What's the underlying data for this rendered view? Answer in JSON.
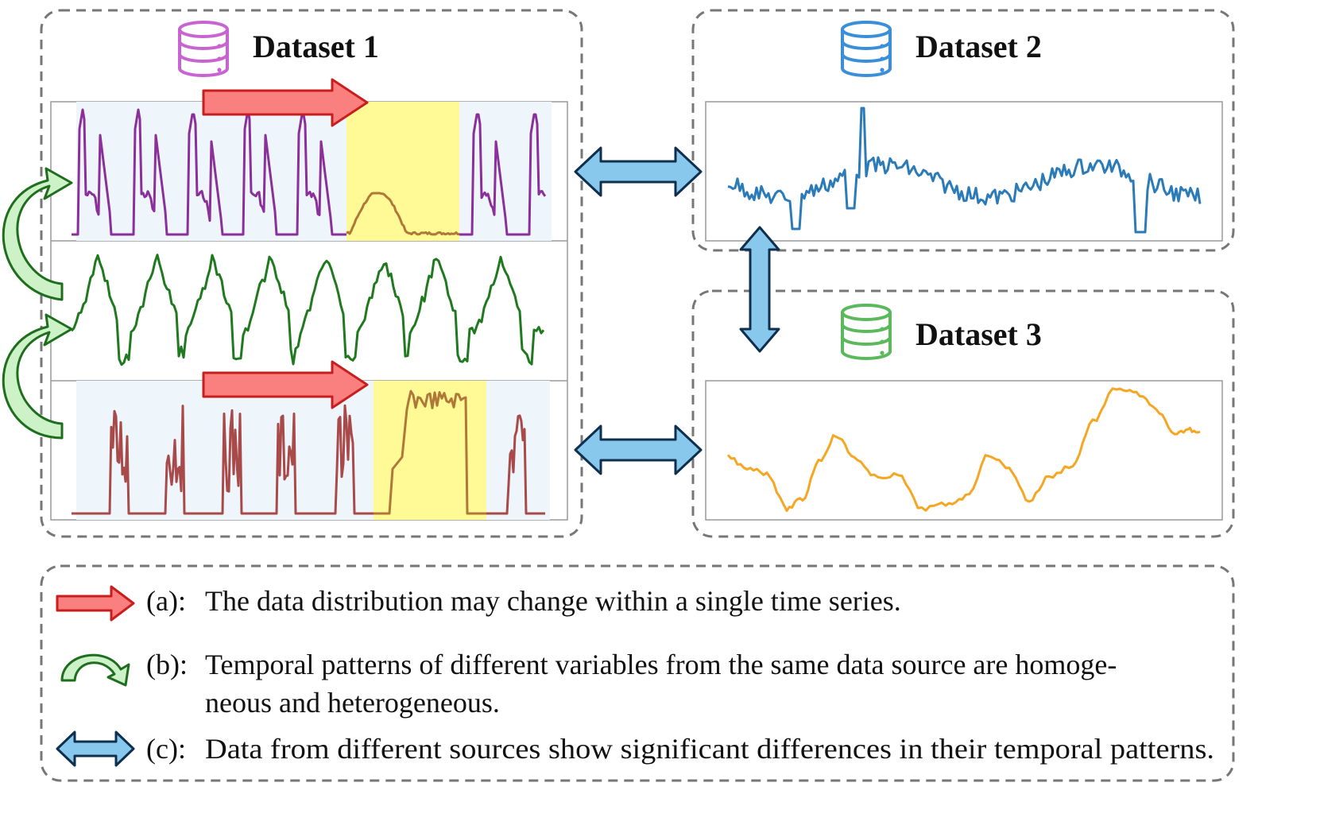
{
  "colors": {
    "dataset1_icon": "#c864d2",
    "dataset2_icon": "#3a8fd8",
    "dataset3_icon": "#5cb85c",
    "series_purple": "#8b2f9b",
    "series_green": "#1f7a1f",
    "series_red": "#a84a4a",
    "series_blue": "#2b7bb9",
    "series_orange": "#f5a623",
    "segment_brown": "#b07838",
    "highlight_yellow": "#fffa96",
    "shade_blue": "#eef6fc",
    "red_arrow_fill": "#fa7f7f",
    "red_arrow_stroke": "#c81e1e",
    "green_arrow_fill": "#cdf2c8",
    "green_arrow_stroke": "#1e6e1e",
    "blue_arrow_fill": "#87c8ec",
    "blue_arrow_stroke": "#0f2f4f",
    "dashed_border": "#777777"
  },
  "datasets": [
    {
      "title": "Dataset 1",
      "icon": "database-icon"
    },
    {
      "title": "Dataset 2",
      "icon": "database-icon"
    },
    {
      "title": "Dataset 3",
      "icon": "database-icon"
    }
  ],
  "legend": {
    "a": {
      "label": "(a):",
      "text": "The data distribution may change within a single time series.",
      "icon": "red-right-arrow-icon"
    },
    "b": {
      "label": "(b):",
      "line1": "Temporal patterns of different variables from the same data source are homoge-",
      "line2": "neous and heterogeneous.",
      "icon": "green-curved-arrow-icon"
    },
    "c": {
      "label": "(c):",
      "text": "Data from different sources show significant differences in their temporal patterns.",
      "icon": "blue-double-arrow-icon"
    }
  }
}
